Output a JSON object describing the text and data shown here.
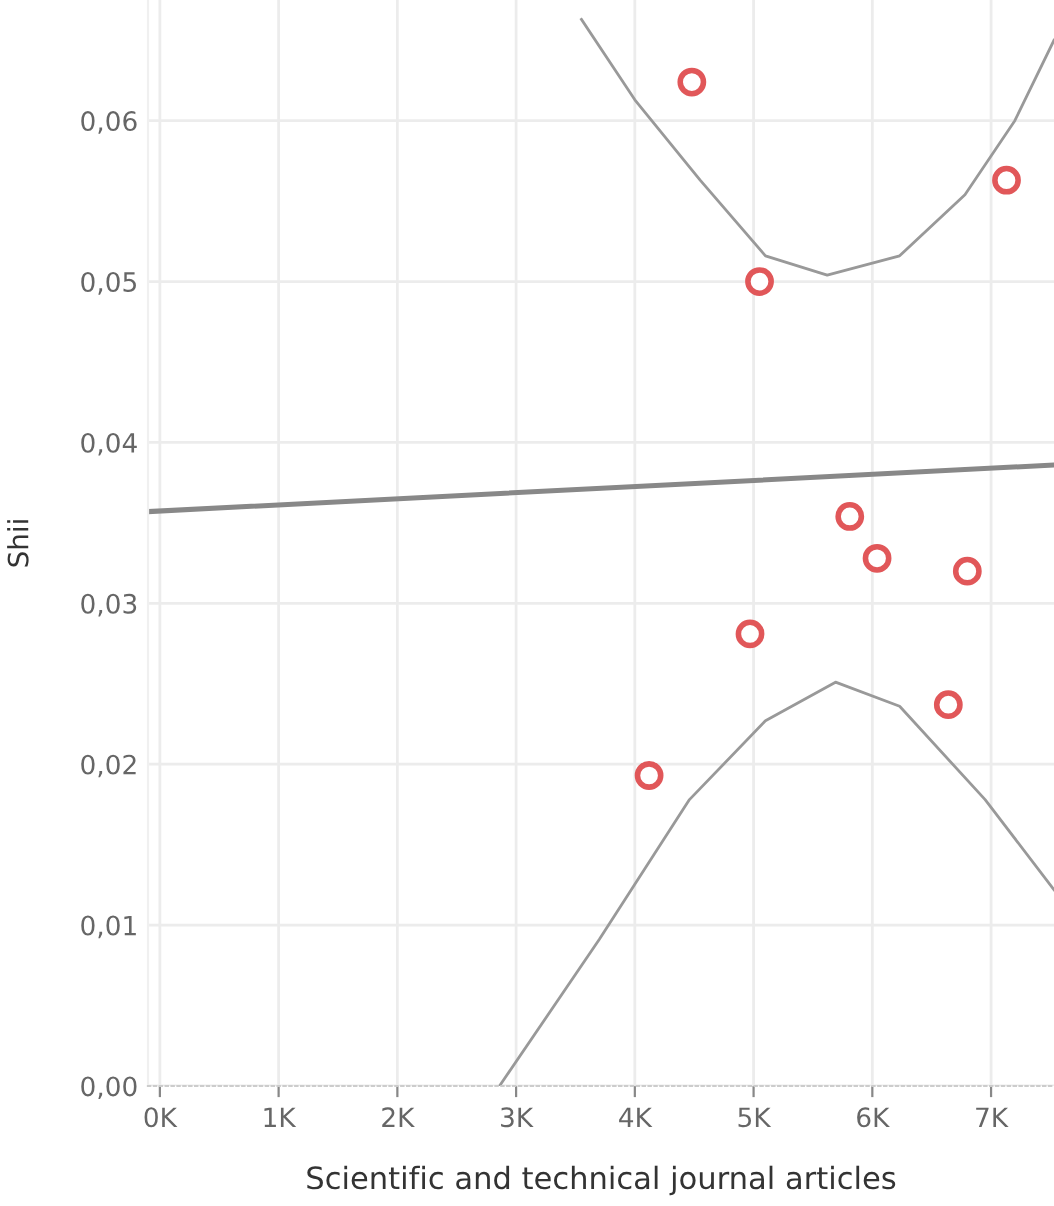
{
  "chart_data": {
    "type": "scatter",
    "xlabel": "Scientific and technical journal articles",
    "ylabel": "Shii",
    "xlim": [
      -100,
      7530
    ],
    "ylim": [
      0,
      0.0675
    ],
    "xticks": [
      {
        "value": 0,
        "label": "0K"
      },
      {
        "value": 1000,
        "label": "1K"
      },
      {
        "value": 2000,
        "label": "2K"
      },
      {
        "value": 3000,
        "label": "3K"
      },
      {
        "value": 4000,
        "label": "4K"
      },
      {
        "value": 5000,
        "label": "5K"
      },
      {
        "value": 6000,
        "label": "6K"
      },
      {
        "value": 7000,
        "label": "7K"
      }
    ],
    "yticks": [
      {
        "value": 0,
        "label": "0,00"
      },
      {
        "value": 0.01,
        "label": "0,01"
      },
      {
        "value": 0.02,
        "label": "0,02"
      },
      {
        "value": 0.03,
        "label": "0,03"
      },
      {
        "value": 0.04,
        "label": "0,04"
      },
      {
        "value": 0.05,
        "label": "0,05"
      },
      {
        "value": 0.06,
        "label": "0,06"
      }
    ],
    "grid": true,
    "legend": false,
    "series": [
      {
        "type": "line",
        "color": "#999999",
        "marker": "none",
        "x": [
          3550,
          4000,
          4550,
          5100,
          5620,
          6230,
          6780,
          7200,
          7530
        ],
        "values": [
          0.0663,
          0.0613,
          0.0563,
          0.0516,
          0.0504,
          0.0516,
          0.0554,
          0.06,
          0.065
        ]
      },
      {
        "type": "line",
        "color": "#999999",
        "marker": "none",
        "x": [
          2860,
          3700,
          4460,
          5100,
          5690,
          6230,
          6950,
          7530
        ],
        "values": [
          0.0,
          0.0091,
          0.0178,
          0.0227,
          0.0251,
          0.0236,
          0.0178,
          0.0122
        ]
      },
      {
        "type": "line",
        "color": "#888888",
        "marker": "none",
        "x": [
          -100,
          7530
        ],
        "values": [
          0.0357,
          0.0386
        ]
      },
      {
        "color": "#e15759",
        "marker": "circle",
        "x": [
          4480,
          7130,
          5050,
          5810,
          6040,
          6800,
          4970,
          6640,
          4120
        ],
        "values": [
          0.0624,
          0.0563,
          0.05,
          0.0354,
          0.0328,
          0.032,
          0.0281,
          0.0237,
          0.0193
        ]
      }
    ]
  }
}
